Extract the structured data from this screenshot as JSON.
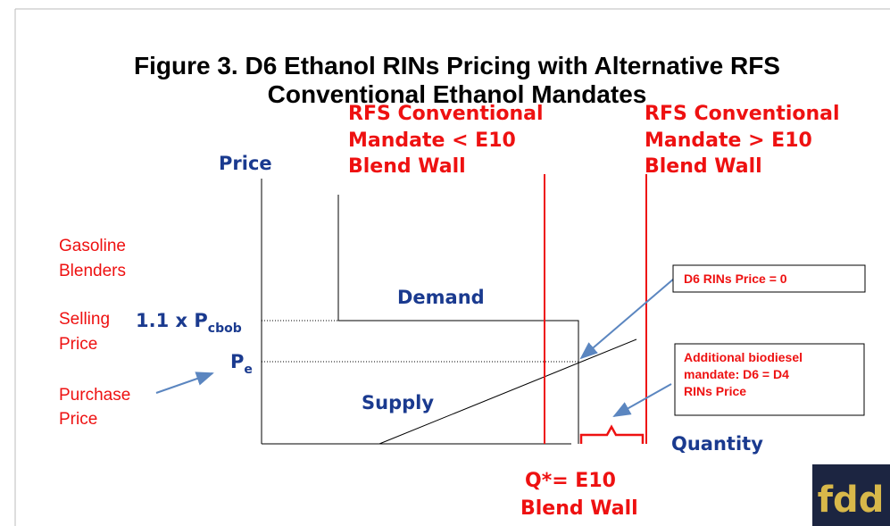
{
  "title": [
    "Figure 3. D6 Ethanol RINs Pricing with Alternative  RFS",
    "Conventional Ethanol Mandates"
  ],
  "mandate_low": [
    "RFS Conventional",
    "Mandate < E10",
    "Blend Wall"
  ],
  "mandate_high": [
    "RFS Conventional",
    "Mandate > E10",
    "Blend Wall"
  ],
  "y_axis_label": "Price",
  "x_axis_label": "Quantity",
  "demand_label": "Demand",
  "supply_label": "Supply",
  "blenders": [
    "Gasoline",
    "Blenders"
  ],
  "selling_price": [
    "Selling",
    "Price"
  ],
  "purchase_price": [
    "Purchase",
    "Price"
  ],
  "price_cbob": {
    "main": "1.1 x P",
    "sub": "cbob"
  },
  "price_e": {
    "main": "P",
    "sub": "e"
  },
  "box_zero": "D6 RINs Price = 0",
  "box_biodiesel": [
    "Additional biodiesel",
    "mandate: D6 = D4",
    "RINs Price"
  ],
  "q_star": [
    "Q*= E10",
    "Blend Wall"
  ],
  "logo": "fdd"
}
